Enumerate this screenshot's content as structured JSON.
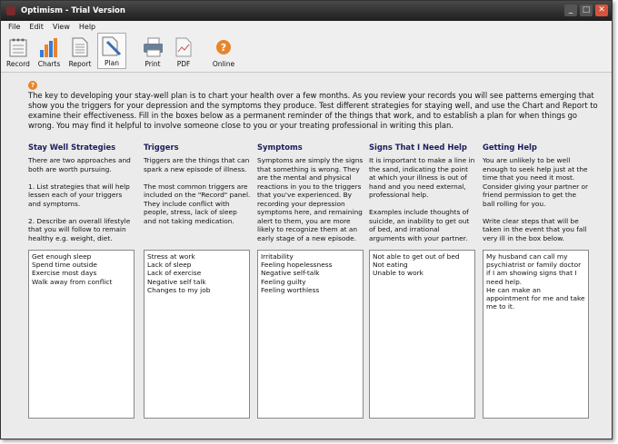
{
  "window": {
    "title": "Optimism - Trial Version",
    "controls": [
      "_",
      "□",
      "✕"
    ]
  },
  "menu": [
    "File",
    "Edit",
    "View",
    "Help"
  ],
  "toolbar": [
    {
      "label": "Record",
      "icon": "record-icon"
    },
    {
      "label": "Charts",
      "icon": "charts-icon"
    },
    {
      "label": "Report",
      "icon": "report-icon"
    },
    {
      "label": "Plan",
      "icon": "plan-icon",
      "active": true
    },
    {
      "label": "Print",
      "icon": "print-icon"
    },
    {
      "label": "PDF",
      "icon": "pdf-icon"
    },
    {
      "label": "Online",
      "icon": "online-help-icon"
    }
  ],
  "intro": "The key to developing your stay-well plan is to chart your health over a few months. As you review your records you will see patterns emerging that show you the triggers for your depression and the symptoms they produce. Test different strategies for staying well, and use the Chart and Report to examine their effectiveness. Fill in the boxes below as a permanent reminder of the things that work, and to establish a plan for when things go wrong. You may find it helpful to involve someone close to you or your treating professional in writing this plan.",
  "columns": [
    {
      "title": "Stay Well Strategies",
      "description": "There are two approaches and both are worth pursuing.\n\n1. List strategies that will help lessen each of your triggers and symptoms.\n\n2. Describe an overall lifestyle that you will follow to remain healthy e.g. weight, diet.",
      "value": "Get enough sleep\nSpend time outside\nExercise most days\nWalk away from conflict"
    },
    {
      "title": "Triggers",
      "description": "Triggers are the things that can spark a new episode of illness.\n\nThe most common triggers are included on the \"Record\" panel. They include conflict with people, stress, lack of sleep and not taking medication.",
      "value": "Stress at work\nLack of sleep\nLack of exercise\nNegative self talk\nChanges to my job"
    },
    {
      "title": "Symptoms",
      "description": "Symptoms are simply the signs that something is wrong. They are the mental and physical reactions in you to the triggers that you've experienced. By recording your depression symptoms here, and remaining alert to them, you are more likely to recognize them at an early stage of a new episode.",
      "value": "Irritability\nFeeling hopelessness\nNegative self-talk\nFeeling guilty\nFeeling worthless"
    },
    {
      "title": "Signs That I Need Help",
      "description": "It is important to make a line in the sand, indicating the point at which your illness is out of hand and you need external, professional help.\n\nExamples include thoughts of suicide, an inability to get out of bed, and irrational arguments with your partner.",
      "value": "Not able to get out of bed\nNot eating\nUnable to work"
    },
    {
      "title": "Getting Help",
      "description": "You are unlikely to be well enough to seek help just at the time that you need it most. Consider giving your partner or friend permission to get the ball rolling for you.\n\nWrite clear steps that will be taken in the event that you fall very ill in the box below.",
      "value": "My husband can call my psychiatrist or family doctor if I am showing signs that I need help.\nHe can make an appointment for me and take me to it."
    }
  ]
}
